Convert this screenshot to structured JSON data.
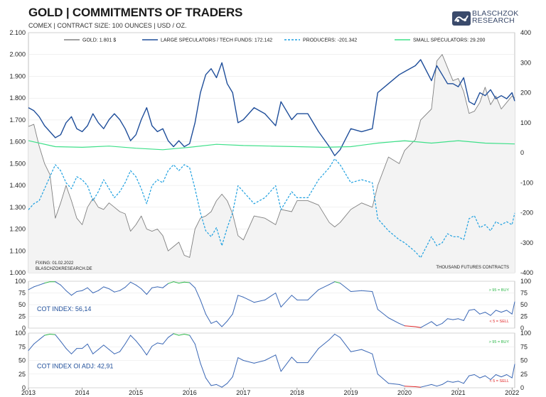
{
  "header": {
    "title": "GOLD | COMMITMENTS OF TRADERS",
    "subtitle": "COMEX | CONTRACT SIZE: 100 OUNCES | USD / OZ.",
    "logo_line1": "BLASCHZOK",
    "logo_line2": "RESEARCH"
  },
  "colors": {
    "gold": "#808080",
    "large": "#1f4e9a",
    "producers": "#1ea0e0",
    "small": "#3ee089",
    "buy": "#2eb84a",
    "sell": "#e0282a",
    "index": "#3a67b5"
  },
  "chart_data": [
    {
      "type": "line",
      "x_range": [
        2013.0,
        2022.05
      ],
      "left_axis": {
        "ylim": [
          1.0,
          2.1
        ],
        "ticks": [
          "1.000",
          "1.100",
          "1.200",
          "1.300",
          "1.400",
          "1.500",
          "1.600",
          "1.700",
          "1.800",
          "1.900",
          "2.000",
          "2.100"
        ],
        "unit": "USD / oz. (thousands)"
      },
      "right_axis": {
        "ylim": [
          -400,
          400
        ],
        "ticks": [
          "-400",
          "-300",
          "-200",
          "-100",
          "0",
          "100",
          "200",
          "300",
          "400"
        ]
      },
      "legend": [
        "GOLD: 1.801 $",
        "LARGE SPECULATORS / TECH FUNDS: 172.142",
        "PRODUCERS: -201.342",
        "SMALL SPECULATORS: 29.200"
      ],
      "legend_placement": "top",
      "annotations": {
        "fixing": "FIXING:  01.02.2022",
        "source": "BLASCHZOKRESEARCH.DE",
        "units": "THOUSAND FUTURES CONTRACTS"
      },
      "series": [
        {
          "name": "GOLD: 1.801 $",
          "axis": "left",
          "x": [
            2013.0,
            2013.1,
            2013.2,
            2013.3,
            2013.4,
            2013.5,
            2013.6,
            2013.7,
            2013.8,
            2013.9,
            2014.0,
            2014.1,
            2014.2,
            2014.3,
            2014.4,
            2014.5,
            2014.6,
            2014.7,
            2014.8,
            2014.9,
            2015.0,
            2015.1,
            2015.2,
            2015.3,
            2015.4,
            2015.5,
            2015.6,
            2015.7,
            2015.8,
            2015.9,
            2016.0,
            2016.1,
            2016.2,
            2016.3,
            2016.4,
            2016.5,
            2016.6,
            2016.7,
            2016.8,
            2016.9,
            2017.0,
            2017.2,
            2017.4,
            2017.6,
            2017.7,
            2017.9,
            2018.0,
            2018.2,
            2018.4,
            2018.6,
            2018.7,
            2018.8,
            2019.0,
            2019.2,
            2019.4,
            2019.5,
            2019.7,
            2019.9,
            2020.0,
            2020.2,
            2020.3,
            2020.5,
            2020.6,
            2020.7,
            2020.8,
            2020.9,
            2021.0,
            2021.1,
            2021.2,
            2021.3,
            2021.4,
            2021.5,
            2021.6,
            2021.7,
            2021.8,
            2021.9,
            2022.0,
            2022.05
          ],
          "y": [
            1.67,
            1.68,
            1.58,
            1.5,
            1.45,
            1.25,
            1.32,
            1.4,
            1.33,
            1.25,
            1.22,
            1.3,
            1.34,
            1.3,
            1.29,
            1.32,
            1.3,
            1.28,
            1.27,
            1.19,
            1.22,
            1.26,
            1.2,
            1.19,
            1.2,
            1.17,
            1.1,
            1.12,
            1.14,
            1.08,
            1.07,
            1.2,
            1.25,
            1.26,
            1.28,
            1.33,
            1.36,
            1.33,
            1.27,
            1.17,
            1.15,
            1.26,
            1.25,
            1.22,
            1.29,
            1.28,
            1.33,
            1.33,
            1.31,
            1.23,
            1.21,
            1.23,
            1.29,
            1.32,
            1.3,
            1.4,
            1.53,
            1.5,
            1.56,
            1.61,
            1.7,
            1.75,
            1.97,
            2.0,
            1.94,
            1.88,
            1.89,
            1.83,
            1.73,
            1.74,
            1.78,
            1.85,
            1.77,
            1.81,
            1.75,
            1.78,
            1.81,
            1.8
          ]
        },
        {
          "name": "LARGE SPECULATORS / TECH FUNDS: 172.142",
          "axis": "right",
          "x": [
            2013.0,
            2013.1,
            2013.2,
            2013.3,
            2013.4,
            2013.5,
            2013.6,
            2013.7,
            2013.8,
            2013.9,
            2014.0,
            2014.1,
            2014.2,
            2014.3,
            2014.4,
            2014.5,
            2014.6,
            2014.7,
            2014.8,
            2014.9,
            2015.0,
            2015.1,
            2015.2,
            2015.3,
            2015.4,
            2015.5,
            2015.6,
            2015.7,
            2015.8,
            2015.9,
            2016.0,
            2016.1,
            2016.2,
            2016.3,
            2016.4,
            2016.5,
            2016.6,
            2016.7,
            2016.8,
            2016.9,
            2017.0,
            2017.2,
            2017.4,
            2017.6,
            2017.7,
            2017.9,
            2018.0,
            2018.2,
            2018.4,
            2018.6,
            2018.7,
            2018.8,
            2019.0,
            2019.2,
            2019.4,
            2019.5,
            2019.7,
            2019.9,
            2020.0,
            2020.2,
            2020.3,
            2020.5,
            2020.6,
            2020.7,
            2020.8,
            2020.9,
            2021.0,
            2021.1,
            2021.2,
            2021.3,
            2021.4,
            2021.5,
            2021.6,
            2021.7,
            2021.8,
            2021.9,
            2022.0,
            2022.05
          ],
          "y": [
            150,
            140,
            120,
            90,
            70,
            50,
            60,
            100,
            120,
            80,
            70,
            90,
            130,
            100,
            80,
            110,
            130,
            110,
            80,
            40,
            60,
            110,
            150,
            90,
            70,
            80,
            40,
            20,
            40,
            20,
            30,
            100,
            200,
            260,
            280,
            250,
            300,
            230,
            200,
            100,
            110,
            150,
            130,
            90,
            170,
            110,
            130,
            130,
            70,
            20,
            -10,
            10,
            80,
            70,
            80,
            200,
            230,
            260,
            270,
            290,
            310,
            240,
            290,
            260,
            230,
            230,
            220,
            250,
            170,
            160,
            200,
            190,
            210,
            180,
            190,
            180,
            200,
            172
          ]
        },
        {
          "name": "PRODUCERS: -201.342",
          "axis": "right",
          "x": [
            2013.0,
            2013.1,
            2013.2,
            2013.3,
            2013.4,
            2013.5,
            2013.6,
            2013.7,
            2013.8,
            2013.9,
            2014.0,
            2014.1,
            2014.2,
            2014.3,
            2014.4,
            2014.5,
            2014.6,
            2014.7,
            2014.8,
            2014.9,
            2015.0,
            2015.1,
            2015.2,
            2015.3,
            2015.4,
            2015.5,
            2015.6,
            2015.7,
            2015.8,
            2015.9,
            2016.0,
            2016.1,
            2016.2,
            2016.3,
            2016.4,
            2016.5,
            2016.6,
            2016.7,
            2016.8,
            2016.9,
            2017.0,
            2017.2,
            2017.4,
            2017.6,
            2017.7,
            2017.9,
            2018.0,
            2018.2,
            2018.4,
            2018.6,
            2018.7,
            2018.8,
            2019.0,
            2019.2,
            2019.4,
            2019.5,
            2019.7,
            2019.9,
            2020.0,
            2020.2,
            2020.3,
            2020.5,
            2020.6,
            2020.7,
            2020.8,
            2020.9,
            2021.0,
            2021.1,
            2021.2,
            2021.3,
            2021.4,
            2021.5,
            2021.6,
            2021.7,
            2021.8,
            2021.9,
            2022.0,
            2022.05
          ],
          "y": [
            -190,
            -170,
            -160,
            -120,
            -80,
            -40,
            -60,
            -100,
            -120,
            -80,
            -90,
            -110,
            -160,
            -130,
            -90,
            -120,
            -150,
            -130,
            -100,
            -60,
            -80,
            -120,
            -170,
            -110,
            -90,
            -100,
            -60,
            -40,
            -60,
            -40,
            -50,
            -120,
            -200,
            -260,
            -280,
            -250,
            -310,
            -250,
            -200,
            -110,
            -130,
            -170,
            -150,
            -110,
            -190,
            -130,
            -150,
            -150,
            -90,
            -50,
            -20,
            -40,
            -100,
            -90,
            -100,
            -220,
            -260,
            -290,
            -300,
            -330,
            -350,
            -280,
            -310,
            -300,
            -270,
            -280,
            -280,
            -290,
            -220,
            -210,
            -250,
            -240,
            -260,
            -230,
            -240,
            -230,
            -240,
            -201
          ]
        },
        {
          "name": "SMALL SPECULATORS: 29.200",
          "axis": "right",
          "x": [
            2013.0,
            2013.5,
            2014.0,
            2014.5,
            2015.0,
            2015.5,
            2016.0,
            2016.5,
            2017.0,
            2017.5,
            2018.0,
            2018.5,
            2019.0,
            2019.5,
            2020.0,
            2020.5,
            2021.0,
            2021.5,
            2022.05
          ],
          "y": [
            40,
            20,
            18,
            22,
            15,
            10,
            18,
            28,
            24,
            22,
            20,
            18,
            20,
            32,
            40,
            32,
            40,
            32,
            29
          ]
        }
      ]
    },
    {
      "type": "line",
      "x_range": [
        2013.0,
        2022.05
      ],
      "ylim": [
        0,
        100
      ],
      "ticks": [
        "0",
        "25",
        "50",
        "75",
        "100"
      ],
      "label": "COT INDEX: 56,14",
      "thresholds": {
        "buy": "> 95 = BUY",
        "sell": "< 5 = SELL"
      },
      "series": [
        {
          "name": "COT INDEX: 56,14",
          "x": [
            2013.0,
            2013.1,
            2013.2,
            2013.3,
            2013.4,
            2013.5,
            2013.6,
            2013.7,
            2013.8,
            2013.9,
            2014.0,
            2014.1,
            2014.2,
            2014.3,
            2014.4,
            2014.5,
            2014.6,
            2014.7,
            2014.8,
            2014.9,
            2015.0,
            2015.1,
            2015.2,
            2015.3,
            2015.4,
            2015.5,
            2015.6,
            2015.7,
            2015.8,
            2015.9,
            2016.0,
            2016.1,
            2016.2,
            2016.3,
            2016.4,
            2016.5,
            2016.6,
            2016.7,
            2016.8,
            2016.9,
            2017.0,
            2017.2,
            2017.4,
            2017.6,
            2017.7,
            2017.9,
            2018.0,
            2018.2,
            2018.4,
            2018.6,
            2018.7,
            2018.8,
            2019.0,
            2019.2,
            2019.4,
            2019.5,
            2019.7,
            2019.9,
            2020.0,
            2020.2,
            2020.3,
            2020.5,
            2020.6,
            2020.7,
            2020.8,
            2020.9,
            2021.0,
            2021.1,
            2021.2,
            2021.3,
            2021.4,
            2021.5,
            2021.6,
            2021.7,
            2021.8,
            2021.9,
            2022.0,
            2022.05
          ],
          "y": [
            82,
            88,
            92,
            96,
            99,
            99,
            92,
            80,
            70,
            78,
            80,
            86,
            75,
            80,
            88,
            84,
            77,
            80,
            87,
            98,
            92,
            84,
            72,
            86,
            88,
            86,
            95,
            99,
            96,
            98,
            97,
            86,
            60,
            30,
            10,
            15,
            3,
            15,
            30,
            70,
            66,
            55,
            60,
            75,
            45,
            70,
            60,
            60,
            82,
            93,
            99,
            96,
            78,
            80,
            78,
            40,
            22,
            10,
            5,
            3,
            1,
            14,
            5,
            10,
            20,
            18,
            20,
            16,
            38,
            40,
            30,
            34,
            27,
            38,
            34,
            38,
            30,
            56
          ]
        }
      ]
    },
    {
      "type": "line",
      "x_range": [
        2013.0,
        2022.05
      ],
      "ylim": [
        0,
        100
      ],
      "ticks": [
        "0",
        "25",
        "50",
        "75",
        "100"
      ],
      "label": "COT INDEX OI ADJ: 42,91",
      "thresholds": {
        "buy": "> 95 = BUY",
        "sell": "< 5 = SELL"
      },
      "x_ticks": [
        "2013",
        "2014",
        "2015",
        "2016",
        "2017",
        "2018",
        "2019",
        "2020",
        "2021",
        "2022"
      ],
      "series": [
        {
          "name": "COT INDEX OI ADJ: 42,91",
          "x": [
            2013.0,
            2013.1,
            2013.2,
            2013.3,
            2013.4,
            2013.5,
            2013.6,
            2013.7,
            2013.8,
            2013.9,
            2014.0,
            2014.1,
            2014.2,
            2014.3,
            2014.4,
            2014.5,
            2014.6,
            2014.7,
            2014.8,
            2014.9,
            2015.0,
            2015.1,
            2015.2,
            2015.3,
            2015.4,
            2015.5,
            2015.6,
            2015.7,
            2015.8,
            2015.9,
            2016.0,
            2016.1,
            2016.2,
            2016.3,
            2016.4,
            2016.5,
            2016.6,
            2016.7,
            2016.8,
            2016.9,
            2017.0,
            2017.2,
            2017.4,
            2017.6,
            2017.7,
            2017.9,
            2018.0,
            2018.2,
            2018.4,
            2018.6,
            2018.7,
            2018.8,
            2019.0,
            2019.2,
            2019.4,
            2019.5,
            2019.7,
            2019.9,
            2020.0,
            2020.2,
            2020.3,
            2020.5,
            2020.6,
            2020.7,
            2020.8,
            2020.9,
            2021.0,
            2021.1,
            2021.2,
            2021.3,
            2021.4,
            2021.5,
            2021.6,
            2021.7,
            2021.8,
            2021.9,
            2022.0,
            2022.05
          ],
          "y": [
            68,
            80,
            88,
            96,
            98,
            97,
            85,
            72,
            62,
            72,
            72,
            80,
            62,
            70,
            78,
            70,
            62,
            66,
            80,
            96,
            86,
            74,
            60,
            76,
            82,
            80,
            92,
            99,
            96,
            98,
            96,
            80,
            45,
            18,
            4,
            6,
            1,
            8,
            20,
            55,
            50,
            45,
            50,
            60,
            30,
            56,
            46,
            46,
            72,
            88,
            98,
            92,
            66,
            70,
            62,
            25,
            8,
            6,
            3,
            2,
            1,
            6,
            3,
            6,
            12,
            10,
            12,
            8,
            22,
            24,
            18,
            22,
            15,
            24,
            20,
            24,
            18,
            43
          ]
        }
      ]
    }
  ]
}
